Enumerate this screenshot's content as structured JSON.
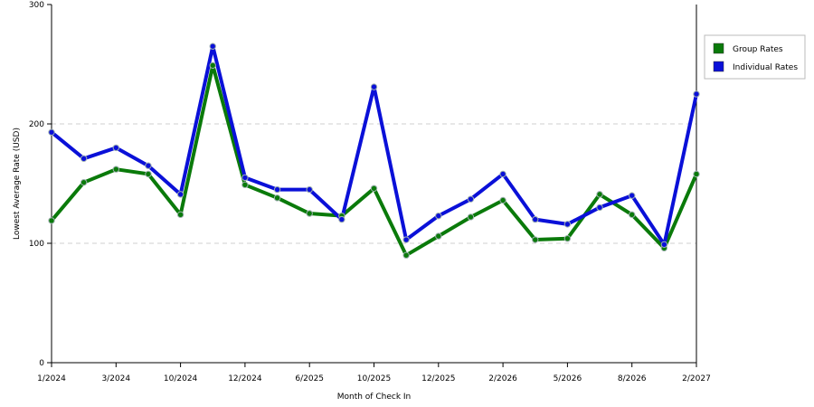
{
  "chart_data": {
    "type": "line",
    "xlabel": "Month of Check In",
    "ylabel": "Lowest Average Rate (USD)",
    "ylim": [
      0,
      300
    ],
    "y_ticks": [
      0,
      100,
      200,
      300
    ],
    "grid": "horizontal dashed",
    "legend_position": "top-right",
    "x_tick_labels": [
      {
        "index": 0,
        "label": "1/2024"
      },
      {
        "index": 2,
        "label": "3/2024"
      },
      {
        "index": 4,
        "label": "10/2024"
      },
      {
        "index": 6,
        "label": "12/2024"
      },
      {
        "index": 8,
        "label": "6/2025"
      },
      {
        "index": 10,
        "label": "10/2025"
      },
      {
        "index": 12,
        "label": "12/2025"
      },
      {
        "index": 14,
        "label": "2/2026"
      },
      {
        "index": 16,
        "label": "5/2026"
      },
      {
        "index": 18,
        "label": "8/2026"
      },
      {
        "index": 20,
        "label": "2/2027"
      }
    ],
    "series": [
      {
        "name": "Group Rates",
        "color": "#0a7a0a",
        "values": [
          119,
          151,
          162,
          158,
          124,
          249,
          149,
          138,
          125,
          123,
          146,
          90,
          106,
          122,
          136,
          103,
          104,
          141,
          124,
          96,
          158
        ]
      },
      {
        "name": "Individual Rates",
        "color": "#0a10d8",
        "values": [
          193,
          171,
          180,
          165,
          141,
          265,
          155,
          145,
          145,
          120,
          231,
          103,
          123,
          137,
          158,
          120,
          116,
          130,
          140,
          99,
          225
        ]
      }
    ]
  }
}
